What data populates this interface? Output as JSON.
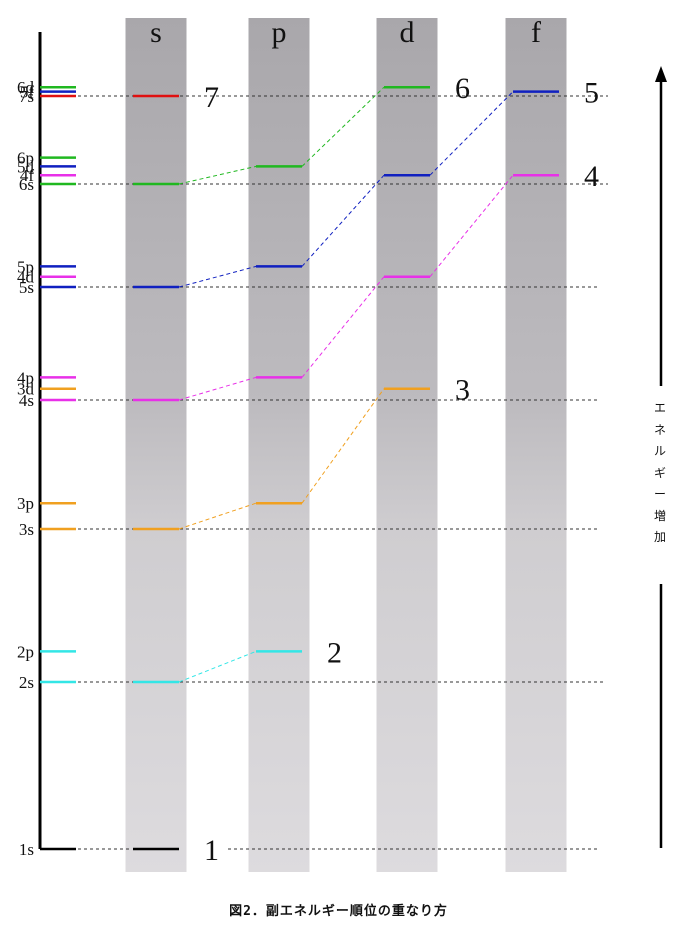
{
  "columns": [
    {
      "label": "s",
      "levels": [
        {
          "n": 1,
          "energy": 1.0,
          "color": "#000000"
        },
        {
          "n": 2,
          "energy": 2.0,
          "color": "#33e6e6"
        },
        {
          "n": 3,
          "energy": 3.0,
          "color": "#f0a020"
        },
        {
          "n": 4,
          "energy": 4.0,
          "color": "#e830e8"
        },
        {
          "n": 5,
          "energy": 5.0,
          "color": "#1020c0"
        },
        {
          "n": 6,
          "energy": 6.0,
          "color": "#20b820"
        },
        {
          "n": 7,
          "energy": 7.0,
          "color": "#e01010"
        }
      ]
    },
    {
      "label": "p",
      "levels": [
        {
          "n": 2,
          "energy": 2.2,
          "color": "#33e6e6"
        },
        {
          "n": 3,
          "energy": 3.2,
          "color": "#f0a020"
        },
        {
          "n": 4,
          "energy": 4.2,
          "color": "#e830e8"
        },
        {
          "n": 5,
          "energy": 5.2,
          "color": "#1020c0"
        },
        {
          "n": 6,
          "energy": 6.2,
          "color": "#20b820"
        }
      ]
    },
    {
      "label": "d",
      "levels": [
        {
          "n": 3,
          "energy": 4.1,
          "color": "#f0a020"
        },
        {
          "n": 4,
          "energy": 5.1,
          "color": "#e830e8"
        },
        {
          "n": 5,
          "energy": 6.1,
          "color": "#1020c0"
        },
        {
          "n": 6,
          "energy": 7.1,
          "color": "#20b820"
        }
      ]
    },
    {
      "label": "f",
      "levels": [
        {
          "n": 4,
          "energy": 6.1,
          "color": "#e830e8"
        },
        {
          "n": 5,
          "energy": 7.05,
          "color": "#1020c0"
        }
      ]
    }
  ],
  "shell_numbers": [
    {
      "text": "1",
      "column": "s",
      "energy": 1.0
    },
    {
      "text": "2",
      "column": "p",
      "energy": 2.2
    },
    {
      "text": "3",
      "column": "d",
      "energy": 4.1
    },
    {
      "text": "4",
      "column": "f",
      "energy": 6.1
    },
    {
      "text": "5",
      "column": "f",
      "energy": 7.05
    },
    {
      "text": "6",
      "column": "d",
      "energy": 7.1
    },
    {
      "text": "7",
      "column": "s",
      "energy": 7.0
    }
  ],
  "scale_labels": [
    {
      "text": "1s",
      "energy": 1.0,
      "color": "#000000"
    },
    {
      "text": "2s",
      "energy": 2.0,
      "color": "#33e6e6"
    },
    {
      "text": "2p",
      "energy": 2.2,
      "color": "#33e6e6"
    },
    {
      "text": "3s",
      "energy": 3.0,
      "color": "#f0a020"
    },
    {
      "text": "3p",
      "energy": 3.2,
      "color": "#f0a020"
    },
    {
      "text": "4s",
      "energy": 4.0,
      "color": "#e830e8"
    },
    {
      "text": "3d",
      "energy": 4.1,
      "color": "#f0a020"
    },
    {
      "text": "4p",
      "energy": 4.2,
      "color": "#e830e8"
    },
    {
      "text": "5s",
      "energy": 5.0,
      "color": "#1020c0"
    },
    {
      "text": "4d",
      "energy": 5.1,
      "color": "#e830e8"
    },
    {
      "text": "5p",
      "energy": 5.2,
      "color": "#1020c0"
    },
    {
      "text": "6s",
      "energy": 6.0,
      "color": "#20b820"
    },
    {
      "text": "4f",
      "energy": 6.1,
      "color": "#e830e8"
    },
    {
      "text": "5d",
      "energy": 6.2,
      "color": "#1020c0"
    },
    {
      "text": "6p",
      "energy": 6.3,
      "color": "#20b820"
    },
    {
      "text": "7s",
      "energy": 7.0,
      "color": "#e01010"
    },
    {
      "text": "5f",
      "energy": 7.05,
      "color": "#1020c0"
    },
    {
      "text": "6d",
      "energy": 7.1,
      "color": "#20b820"
    }
  ],
  "dashed_reference_energies": [
    1,
    2,
    3,
    4,
    5,
    6,
    7
  ],
  "energy_axis_label": [
    "エ",
    "ネ",
    "ル",
    "ギ",
    "ー",
    "増",
    "加"
  ],
  "caption": "図2．副エネルギー順位の重なり方"
}
